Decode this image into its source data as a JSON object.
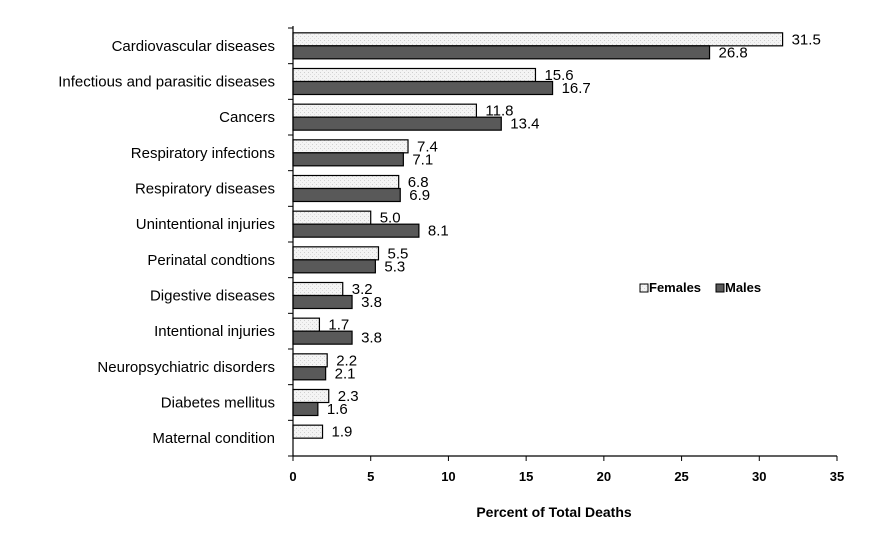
{
  "chart_data": {
    "type": "bar",
    "orientation": "horizontal",
    "categories": [
      "Cardiovascular diseases",
      "Infectious and parasitic diseases",
      "Cancers",
      "Respiratory infections",
      "Respiratory diseases",
      "Unintentional injuries",
      "Perinatal condtions",
      "Digestive diseases",
      "Intentional injuries",
      "Neuropsychiatric disorders",
      "Diabetes mellitus",
      "Maternal condition"
    ],
    "series": [
      {
        "name": "Females",
        "color": "#f2f2f2",
        "values": [
          31.5,
          15.6,
          11.8,
          7.4,
          6.8,
          5.0,
          5.5,
          3.2,
          1.7,
          2.2,
          2.3,
          1.9
        ],
        "labels": [
          "31.5",
          "15.6",
          "11.8",
          "7.4",
          "6.8",
          "5.0",
          "5.5",
          "3.2",
          "1.7",
          "2.2",
          "2.3",
          "1.9"
        ]
      },
      {
        "name": "Males",
        "color": "#595959",
        "values": [
          26.8,
          16.7,
          13.4,
          7.1,
          6.9,
          8.1,
          5.3,
          3.8,
          3.8,
          2.1,
          1.6,
          null
        ],
        "labels": [
          "26.8",
          "16.7",
          "13.4",
          "7.1",
          "6.9",
          "8.1",
          "5.3",
          "3.8",
          "3.8",
          "2.1",
          "1.6",
          null
        ]
      }
    ],
    "xlabel": "Percent of Total Deaths",
    "xlim": [
      0,
      35
    ],
    "xticks": [
      0,
      5,
      10,
      15,
      20,
      25,
      30,
      35
    ],
    "grid": false,
    "legend": "right"
  }
}
